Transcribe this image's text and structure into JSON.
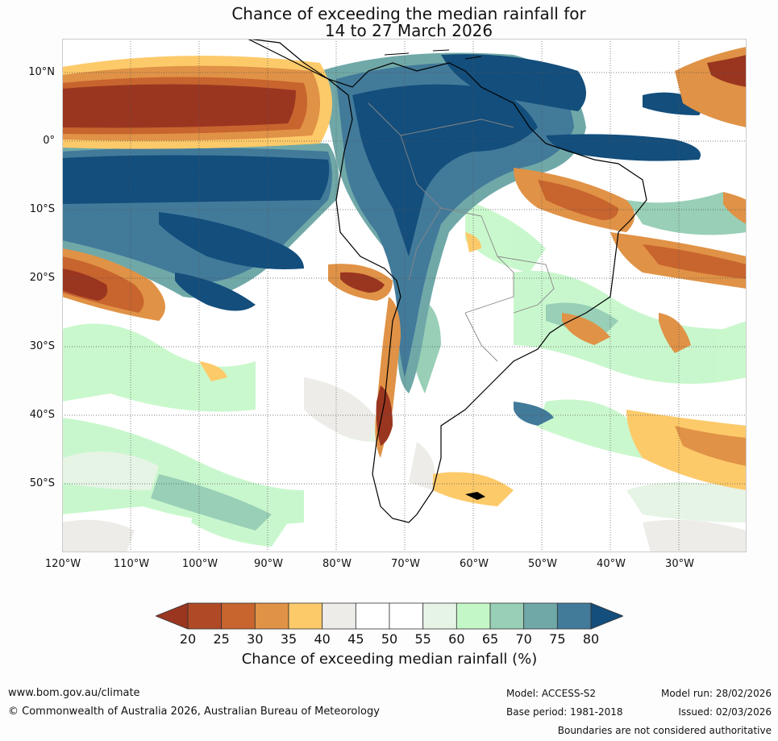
{
  "title": {
    "line1": "Chance of exceeding the median rainfall for",
    "line2": "14 to 27 March 2026"
  },
  "map": {
    "lat_labels": [
      "10°N",
      "0°",
      "10°S",
      "20°S",
      "30°S",
      "40°S",
      "50°S"
    ],
    "lon_labels": [
      "120°W",
      "110°W",
      "100°W",
      "90°W",
      "80°W",
      "70°W",
      "60°W",
      "50°W",
      "40°W",
      "30°W"
    ]
  },
  "colorbar": {
    "ticks": [
      "20",
      "25",
      "30",
      "35",
      "40",
      "45",
      "50",
      "55",
      "60",
      "65",
      "70",
      "75",
      "80"
    ],
    "colors": [
      "#9a3620",
      "#b04a26",
      "#c8642e",
      "#e09246",
      "#fdca6a",
      "#eeece8",
      "#ffffff",
      "#ffffff",
      "#e6f4e6",
      "#c4f7c8",
      "#98cfb6",
      "#70a8a8",
      "#427a9a",
      "#134e7c"
    ],
    "label": "Chance of exceeding median rainfall (%)"
  },
  "footer": {
    "url": "www.bom.gov.au/climate",
    "copyright": "© Commonwealth of Australia 2026, Australian Bureau of Meteorology",
    "model": "Model: ACCESS-S2",
    "base_period": "Base period: 1981-2018",
    "model_run": "Model run: 28/02/2026",
    "issued": "Issued: 02/03/2026",
    "disclaimer": "Boundaries are not considered authoritative"
  }
}
